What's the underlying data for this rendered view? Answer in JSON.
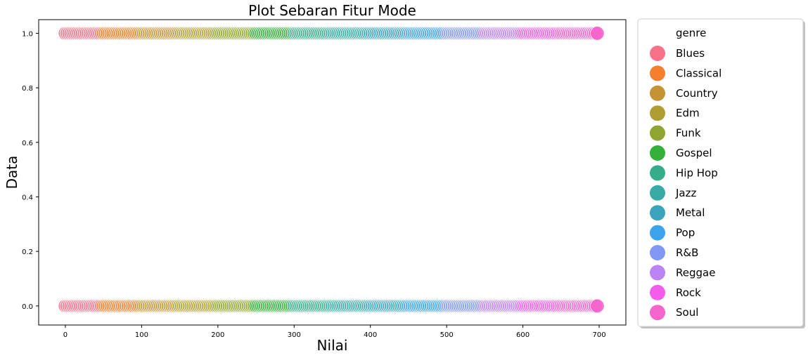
{
  "chart_data": {
    "type": "scatter",
    "title": "Plot Sebaran Fitur Mode",
    "xlabel": "Nilai",
    "ylabel": "Data",
    "xlim": [
      -35,
      735
    ],
    "ylim": [
      -0.07,
      1.05
    ],
    "xticks": [
      "0",
      "100",
      "200",
      "300",
      "400",
      "500",
      "600",
      "700"
    ],
    "xtick_values": [
      0,
      100,
      200,
      300,
      400,
      500,
      600,
      700
    ],
    "yticks": [
      "0.0",
      "0.2",
      "0.4",
      "0.6",
      "0.8",
      "1.0"
    ],
    "ytick_values": [
      0,
      0.2,
      0.4,
      0.6,
      0.8,
      1.0
    ],
    "grid": false,
    "legend": {
      "title": "genre",
      "placement": "outside-right"
    },
    "series": [
      {
        "name": "Blues",
        "color": "#f77189",
        "x_range": [
          0,
          50
        ]
      },
      {
        "name": "Classical",
        "color": "#f57f2f",
        "x_range": [
          50,
          100
        ]
      },
      {
        "name": "Country",
        "color": "#c39334",
        "x_range": [
          100,
          150
        ]
      },
      {
        "name": "Edm",
        "color": "#ae9d31",
        "x_range": [
          150,
          200
        ]
      },
      {
        "name": "Funk",
        "color": "#8ea531",
        "x_range": [
          200,
          250
        ]
      },
      {
        "name": "Gospel",
        "color": "#33b039",
        "x_range": [
          250,
          300
        ]
      },
      {
        "name": "Hip Hop",
        "color": "#36ad8a",
        "x_range": [
          300,
          350
        ]
      },
      {
        "name": "Jazz",
        "color": "#38aaa4",
        "x_range": [
          350,
          400
        ]
      },
      {
        "name": "Metal",
        "color": "#3ba3bc",
        "x_range": [
          400,
          450
        ]
      },
      {
        "name": "Pop",
        "color": "#3ba3ec",
        "x_range": [
          450,
          500
        ]
      },
      {
        "name": "R&B",
        "color": "#8197f4",
        "x_range": [
          500,
          550
        ]
      },
      {
        "name": "Reggae",
        "color": "#bb83f4",
        "x_range": [
          550,
          600
        ]
      },
      {
        "name": "Rock",
        "color": "#f45deb",
        "x_range": [
          600,
          650
        ]
      },
      {
        "name": "Soul",
        "color": "#f565cc",
        "x_range": [
          650,
          700
        ]
      }
    ],
    "y_levels": [
      0,
      1
    ]
  }
}
